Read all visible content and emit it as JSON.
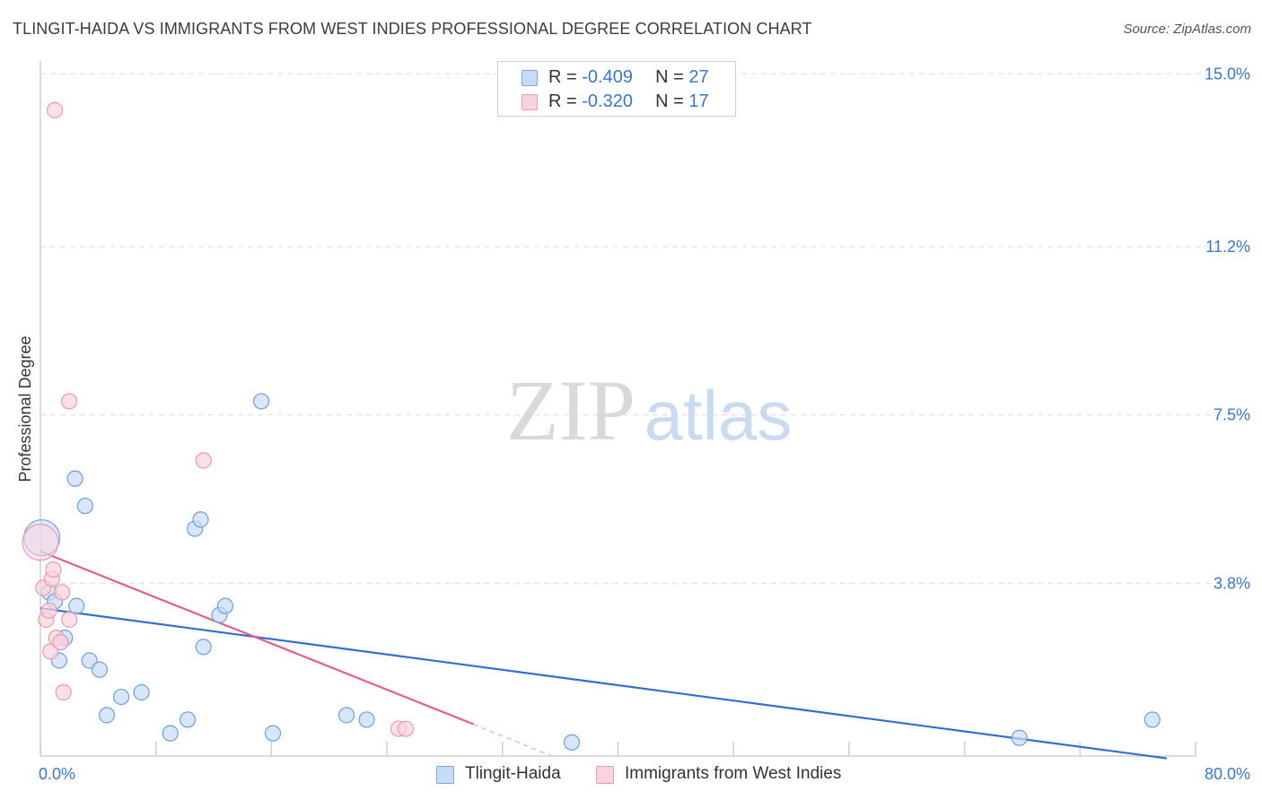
{
  "header": {
    "title": "TLINGIT-HAIDA VS IMMIGRANTS FROM WEST INDIES PROFESSIONAL DEGREE CORRELATION CHART",
    "source": "Source: ZipAtlas.com"
  },
  "watermark": {
    "zip": "ZIP",
    "atlas": "atlas"
  },
  "legend": {
    "rows": [
      {
        "r_label": "R = ",
        "r_value": "-0.409",
        "n_label": "N = ",
        "n_value": "27",
        "color": "#aecbf0"
      },
      {
        "r_label": "R = ",
        "r_value": "-0.320",
        "n_label": "N = ",
        "n_value": "17",
        "color": "#f8c0cf"
      }
    ]
  },
  "bottom_legend": {
    "series1": "Tlingit-Haida",
    "series2": "Immigrants from West Indies"
  },
  "chart_data": {
    "type": "scatter",
    "title": "TLINGIT-HAIDA VS IMMIGRANTS FROM WEST INDIES PROFESSIONAL DEGREE CORRELATION CHART",
    "ylabel": "Professional Degree",
    "xlabel": "",
    "xlim": [
      0,
      80
    ],
    "ylim": [
      0,
      15.4
    ],
    "x_tick_labels": [
      "0.0%",
      "80.0%"
    ],
    "y_ticks": [
      3.8,
      7.5,
      11.2,
      15.0
    ],
    "y_tick_labels": [
      "3.8%",
      "7.5%",
      "11.2%",
      "15.0%"
    ],
    "grid": true,
    "colors": {
      "series1": "#aecbf0",
      "series1_line": "#2f6fd0",
      "series2": "#f8c0cf",
      "series2_line": "#e0608a",
      "tick_text": "#3a78c8"
    },
    "series": [
      {
        "name": "Tlingit-Haida",
        "points": [
          {
            "x": 0.1,
            "y": 4.8,
            "big": true
          },
          {
            "x": 0.6,
            "y": 3.6
          },
          {
            "x": 1.0,
            "y": 3.4
          },
          {
            "x": 1.3,
            "y": 2.1
          },
          {
            "x": 1.7,
            "y": 2.6
          },
          {
            "x": 2.5,
            "y": 3.3
          },
          {
            "x": 2.4,
            "y": 6.1
          },
          {
            "x": 3.1,
            "y": 5.5
          },
          {
            "x": 3.4,
            "y": 2.1
          },
          {
            "x": 4.1,
            "y": 1.9
          },
          {
            "x": 4.6,
            "y": 0.9
          },
          {
            "x": 5.6,
            "y": 1.3
          },
          {
            "x": 7.0,
            "y": 1.4
          },
          {
            "x": 9.0,
            "y": 0.5
          },
          {
            "x": 10.2,
            "y": 0.8
          },
          {
            "x": 10.7,
            "y": 5.0
          },
          {
            "x": 11.1,
            "y": 5.2
          },
          {
            "x": 11.3,
            "y": 2.4
          },
          {
            "x": 12.4,
            "y": 3.1
          },
          {
            "x": 12.8,
            "y": 3.3
          },
          {
            "x": 15.3,
            "y": 7.8
          },
          {
            "x": 16.1,
            "y": 0.5
          },
          {
            "x": 21.2,
            "y": 0.9
          },
          {
            "x": 22.6,
            "y": 0.8
          },
          {
            "x": 36.8,
            "y": 0.3
          },
          {
            "x": 67.8,
            "y": 0.4
          },
          {
            "x": 77.0,
            "y": 0.8
          }
        ],
        "trend": {
          "x1": 0,
          "y1": 3.25,
          "x2": 78.0,
          "y2": -0.05
        }
      },
      {
        "name": "Immigrants from West Indies",
        "points": [
          {
            "x": 0.0,
            "y": 4.7,
            "big": true
          },
          {
            "x": 1.0,
            "y": 14.2
          },
          {
            "x": 0.2,
            "y": 3.7
          },
          {
            "x": 0.4,
            "y": 3.0
          },
          {
            "x": 0.6,
            "y": 3.2
          },
          {
            "x": 0.7,
            "y": 2.3
          },
          {
            "x": 0.8,
            "y": 3.9
          },
          {
            "x": 0.9,
            "y": 4.1
          },
          {
            "x": 1.1,
            "y": 2.6
          },
          {
            "x": 1.4,
            "y": 2.5
          },
          {
            "x": 1.5,
            "y": 3.6
          },
          {
            "x": 1.6,
            "y": 1.4
          },
          {
            "x": 2.0,
            "y": 7.8
          },
          {
            "x": 2.0,
            "y": 3.0
          },
          {
            "x": 11.3,
            "y": 6.5
          },
          {
            "x": 24.8,
            "y": 0.6
          },
          {
            "x": 25.3,
            "y": 0.6
          }
        ],
        "trend": {
          "x1": 0,
          "y1": 4.5,
          "x2": 30.0,
          "y2": 0.7
        },
        "trend_dashed_extension": {
          "x1": 30.0,
          "y1": 0.7,
          "x2": 35.8,
          "y2": -0.05
        }
      }
    ]
  }
}
